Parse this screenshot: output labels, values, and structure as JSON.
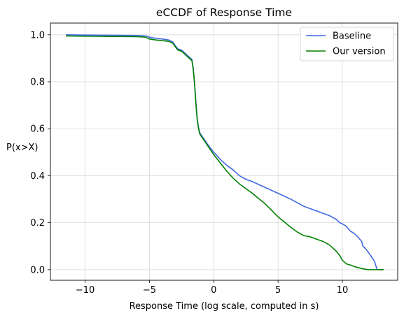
{
  "chart_data": {
    "type": "line",
    "title": "eCCDF of Response Time",
    "xlabel": "Response Time (log scale, computed in s)",
    "ylabel": "P(x>X)",
    "xlim": [
      -12.7,
      14.3
    ],
    "ylim": [
      -0.045,
      1.05
    ],
    "xticks": [
      -10,
      -5,
      0,
      5,
      10
    ],
    "xtick_labels": [
      "−10",
      "−5",
      "0",
      "5",
      "10"
    ],
    "yticks": [
      0.0,
      0.2,
      0.4,
      0.6,
      0.8,
      1.0
    ],
    "ytick_labels": [
      "0.0",
      "0.2",
      "0.4",
      "0.6",
      "0.8",
      "1.0"
    ],
    "grid": true,
    "legend": "top-right",
    "series": [
      {
        "name": "Baseline",
        "color": "#4169e1",
        "x": [
          -11.5,
          -10,
          -8,
          -6,
          -5.3,
          -5,
          -4.5,
          -4,
          -3.5,
          -3.2,
          -3.0,
          -2.8,
          -2.5,
          -2.2,
          -2.0,
          -1.7,
          -1.6,
          -1.5,
          -1.4,
          -1.3,
          -1.2,
          -1.1,
          -1.0,
          -0.8,
          -0.5,
          0,
          0.5,
          1,
          1.5,
          2,
          2.5,
          3,
          4,
          5,
          6,
          7,
          8,
          9,
          9.5,
          9.8,
          10,
          10.3,
          10.6,
          10.9,
          11.2,
          11.5,
          11.6,
          11.8,
          12,
          12.2,
          12.5,
          12.7,
          13.2
        ],
        "y": [
          1.0,
          0.999,
          0.998,
          0.997,
          0.995,
          0.99,
          0.985,
          0.982,
          0.978,
          0.97,
          0.955,
          0.94,
          0.935,
          0.92,
          0.91,
          0.895,
          0.86,
          0.8,
          0.72,
          0.65,
          0.61,
          0.585,
          0.575,
          0.56,
          0.535,
          0.5,
          0.47,
          0.445,
          0.425,
          0.4,
          0.385,
          0.375,
          0.35,
          0.325,
          0.3,
          0.27,
          0.25,
          0.23,
          0.215,
          0.2,
          0.195,
          0.185,
          0.165,
          0.155,
          0.14,
          0.12,
          0.1,
          0.09,
          0.075,
          0.06,
          0.035,
          0.0,
          0.0
        ]
      },
      {
        "name": "Our version",
        "color": "#008000",
        "x": [
          -11.5,
          -10,
          -8,
          -6,
          -5.3,
          -5,
          -4.5,
          -4,
          -3.5,
          -3.2,
          -3.0,
          -2.8,
          -2.5,
          -2.2,
          -2.0,
          -1.7,
          -1.6,
          -1.5,
          -1.4,
          -1.3,
          -1.2,
          -1.1,
          -1.0,
          -0.8,
          -0.5,
          0,
          0.5,
          1,
          1.5,
          2,
          3,
          4,
          5,
          6,
          6.5,
          7,
          7.5,
          8,
          8.5,
          9,
          9.5,
          9.8,
          10,
          10.3,
          10.6,
          11,
          11.5,
          12,
          12.5,
          13.2
        ],
        "y": [
          0.995,
          0.994,
          0.993,
          0.992,
          0.99,
          0.982,
          0.978,
          0.975,
          0.972,
          0.965,
          0.95,
          0.935,
          0.93,
          0.915,
          0.905,
          0.89,
          0.855,
          0.795,
          0.715,
          0.645,
          0.605,
          0.58,
          0.57,
          0.555,
          0.53,
          0.49,
          0.455,
          0.42,
          0.39,
          0.365,
          0.325,
          0.28,
          0.225,
          0.18,
          0.16,
          0.145,
          0.14,
          0.13,
          0.12,
          0.105,
          0.08,
          0.06,
          0.04,
          0.025,
          0.02,
          0.012,
          0.005,
          0.0,
          0.0,
          0.0
        ]
      }
    ]
  }
}
